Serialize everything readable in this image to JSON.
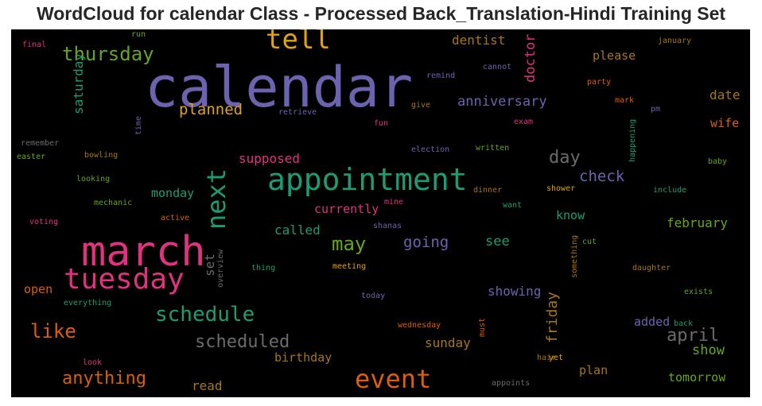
{
  "title": "WordCloud for calendar Class - Processed Back_Translation-Hindi Training Set",
  "words": [
    {
      "t": "calendar",
      "c": "#6b63b0"
    },
    {
      "t": "march",
      "c": "#e0327f"
    },
    {
      "t": "appointment",
      "c": "#1c9c74"
    },
    {
      "t": "tuesday",
      "c": "#e0327f"
    },
    {
      "t": "event",
      "c": "#d95f0d"
    },
    {
      "t": "tell",
      "c": "#e0a314"
    },
    {
      "t": "next",
      "c": "#1c9c74"
    },
    {
      "t": "schedule",
      "c": "#1c9c74"
    },
    {
      "t": "thursday",
      "c": "#66a61e"
    },
    {
      "t": "scheduled",
      "c": "#6b6b6b"
    },
    {
      "t": "like",
      "c": "#d95f0d"
    },
    {
      "t": "anything",
      "c": "#d95f0d"
    },
    {
      "t": "may",
      "c": "#66a61e"
    },
    {
      "t": "april",
      "c": "#6b6b6b"
    },
    {
      "t": "planned",
      "c": "#e0a314"
    },
    {
      "t": "day",
      "c": "#6b6b6b"
    },
    {
      "t": "check",
      "c": "#6b63b0"
    },
    {
      "t": "anniversary",
      "c": "#6b63b0"
    },
    {
      "t": "going",
      "c": "#6b63b0"
    },
    {
      "t": "see",
      "c": "#1c9c74"
    },
    {
      "t": "friday",
      "c": "#a6761d"
    },
    {
      "t": "show",
      "c": "#66a61e"
    },
    {
      "t": "saturday",
      "c": "#1c9c74"
    },
    {
      "t": "doctor",
      "c": "#e0327f"
    },
    {
      "t": "dentist",
      "c": "#a6761d"
    },
    {
      "t": "please",
      "c": "#a6761d"
    },
    {
      "t": "date",
      "c": "#a6761d"
    },
    {
      "t": "wife",
      "c": "#d95f0d"
    },
    {
      "t": "supposed",
      "c": "#e0327f"
    },
    {
      "t": "monday",
      "c": "#1c9c74"
    },
    {
      "t": "currently",
      "c": "#e0327f"
    },
    {
      "t": "called",
      "c": "#1c9c74"
    },
    {
      "t": "know",
      "c": "#1c9c74"
    },
    {
      "t": "february",
      "c": "#66a61e"
    },
    {
      "t": "set",
      "c": "#6b6b6b"
    },
    {
      "t": "open",
      "c": "#d95f0d"
    },
    {
      "t": "showing",
      "c": "#6b63b0"
    },
    {
      "t": "added",
      "c": "#6b63b0"
    },
    {
      "t": "sunday",
      "c": "#a6761d"
    },
    {
      "t": "birthday",
      "c": "#a6761d"
    },
    {
      "t": "read",
      "c": "#a6761d"
    },
    {
      "t": "plan",
      "c": "#a6761d"
    },
    {
      "t": "tomorrow",
      "c": "#66a61e"
    },
    {
      "t": "final",
      "c": "#e0327f"
    },
    {
      "t": "run",
      "c": "#66a61e"
    },
    {
      "t": "remind",
      "c": "#6b63b0"
    },
    {
      "t": "cannot",
      "c": "#6b63b0"
    },
    {
      "t": "january",
      "c": "#a6761d"
    },
    {
      "t": "party",
      "c": "#d95f0d"
    },
    {
      "t": "mark",
      "c": "#d95f0d"
    },
    {
      "t": "pm",
      "c": "#6b63b0"
    },
    {
      "t": "give",
      "c": "#a6761d"
    },
    {
      "t": "retrieve",
      "c": "#6b63b0"
    },
    {
      "t": "time",
      "c": "#6b63b0"
    },
    {
      "t": "exam",
      "c": "#e0327f"
    },
    {
      "t": "fun",
      "c": "#e0327f"
    },
    {
      "t": "remember",
      "c": "#6b6b6b"
    },
    {
      "t": "easter",
      "c": "#66a61e"
    },
    {
      "t": "bowling",
      "c": "#a6761d"
    },
    {
      "t": "election",
      "c": "#6b63b0"
    },
    {
      "t": "written",
      "c": "#66a61e"
    },
    {
      "t": "happening",
      "c": "#1c9c74"
    },
    {
      "t": "baby",
      "c": "#66a61e"
    },
    {
      "t": "looking",
      "c": "#66a61e"
    },
    {
      "t": "dinner",
      "c": "#a6761d"
    },
    {
      "t": "shower",
      "c": "#e0a314"
    },
    {
      "t": "include",
      "c": "#1c9c74"
    },
    {
      "t": "mechanic",
      "c": "#66a61e"
    },
    {
      "t": "mine",
      "c": "#e0327f"
    },
    {
      "t": "want",
      "c": "#1c9c74"
    },
    {
      "t": "voting",
      "c": "#e0327f"
    },
    {
      "t": "active",
      "c": "#d95f0d"
    },
    {
      "t": "shanas",
      "c": "#6b63b0"
    },
    {
      "t": "something",
      "c": "#a6761d"
    },
    {
      "t": "cut",
      "c": "#66a61e"
    },
    {
      "t": "overview",
      "c": "#6b6b6b"
    },
    {
      "t": "thing",
      "c": "#1c9c74"
    },
    {
      "t": "meeting",
      "c": "#e0a314"
    },
    {
      "t": "daughter",
      "c": "#a6761d"
    },
    {
      "t": "everything",
      "c": "#1c9c74"
    },
    {
      "t": "today",
      "c": "#6b63b0"
    },
    {
      "t": "exists",
      "c": "#66a61e"
    },
    {
      "t": "wednesday",
      "c": "#d95f0d"
    },
    {
      "t": "must",
      "c": "#d95f0d"
    },
    {
      "t": "back",
      "c": "#1c9c74"
    },
    {
      "t": "look",
      "c": "#e0327f"
    },
    {
      "t": "hair",
      "c": "#a6761d"
    },
    {
      "t": "yet",
      "c": "#e0a314"
    },
    {
      "t": "appoints",
      "c": "#6b6b6b"
    }
  ]
}
